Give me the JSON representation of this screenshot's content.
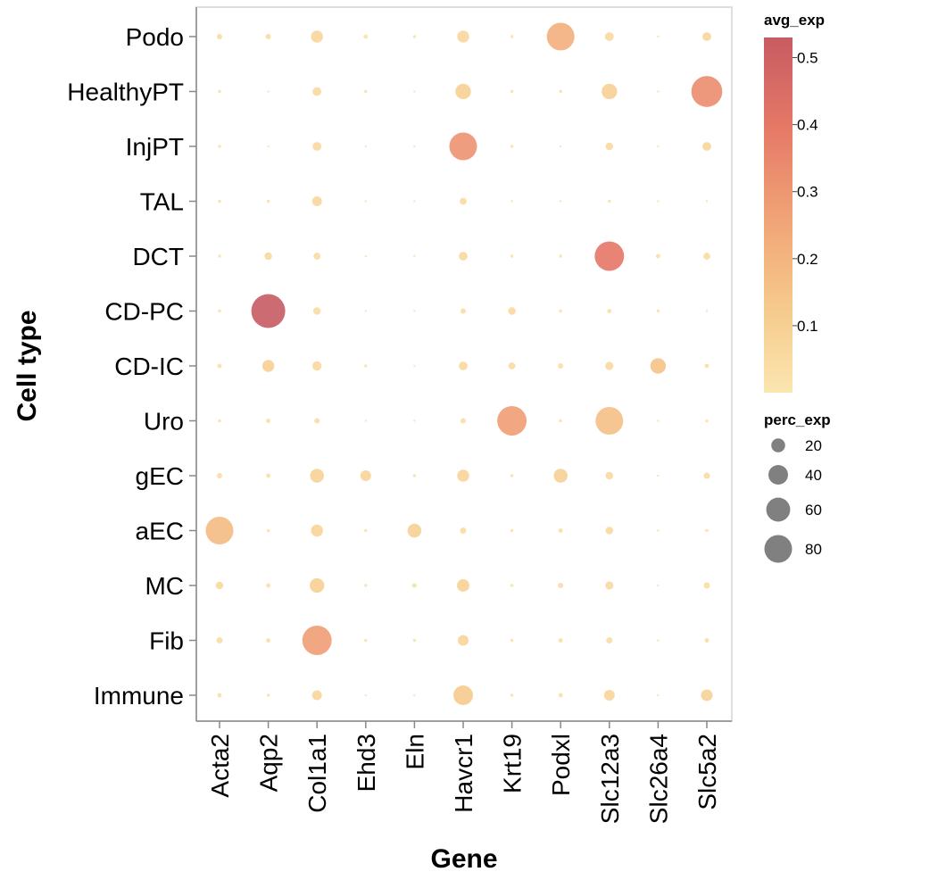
{
  "chart_data": {
    "type": "dotplot",
    "xlabel": "Gene",
    "ylabel": "Cell type",
    "genes": [
      "Acta2",
      "Aqp2",
      "Col1a1",
      "Ehd3",
      "Eln",
      "Havcr1",
      "Krt19",
      "Podxl",
      "Slc12a3",
      "Slc26a4",
      "Slc5a2"
    ],
    "cell_types": [
      "Podo",
      "HealthyPT",
      "InjPT",
      "TAL",
      "DCT",
      "CD-PC",
      "CD-IC",
      "Uro",
      "gEC",
      "aEC",
      "MC",
      "Fib",
      "Immune"
    ],
    "perc_exp": [
      [
        3,
        3,
        15,
        2,
        1,
        15,
        1,
        80,
        8,
        0.5,
        8
      ],
      [
        1,
        0.5,
        8,
        1,
        0.5,
        25,
        1,
        1,
        25,
        0.5,
        100
      ],
      [
        1,
        0.5,
        8,
        0.5,
        0.5,
        80,
        1,
        0.5,
        6,
        0.5,
        8
      ],
      [
        1,
        1,
        10,
        0.5,
        0.5,
        5,
        0.5,
        0.5,
        1,
        0.5,
        0.5
      ],
      [
        1,
        6,
        5,
        0.5,
        0.5,
        8,
        1,
        1,
        90,
        2,
        5
      ],
      [
        1,
        120,
        6,
        0.5,
        0.5,
        3,
        6,
        1,
        2,
        1,
        0.5
      ],
      [
        2,
        15,
        9,
        1,
        0.5,
        8,
        5,
        3,
        7,
        25,
        2
      ],
      [
        1,
        2,
        3,
        0.5,
        0.5,
        3,
        90,
        1,
        80,
        0.5,
        1
      ],
      [
        3,
        2,
        20,
        12,
        1,
        15,
        1,
        20,
        6,
        0.5,
        4
      ],
      [
        80,
        1,
        15,
        1,
        20,
        4,
        1,
        2,
        6,
        0.5,
        1
      ],
      [
        6,
        2,
        22,
        1,
        2,
        16,
        1,
        3,
        7,
        0.5,
        4
      ],
      [
        4,
        2,
        90,
        1,
        1,
        12,
        1,
        2,
        4,
        0.5,
        2
      ],
      [
        2,
        1,
        10,
        0.5,
        0.5,
        40,
        1,
        2,
        12,
        0.5,
        14
      ]
    ],
    "avg_exp": [
      [
        0.05,
        0.05,
        0.07,
        0.02,
        0.02,
        0.07,
        0.02,
        0.22,
        0.06,
        0.01,
        0.07
      ],
      [
        0.02,
        0.01,
        0.06,
        0.02,
        0.01,
        0.1,
        0.02,
        0.02,
        0.1,
        0.01,
        0.33
      ],
      [
        0.02,
        0.01,
        0.06,
        0.01,
        0.01,
        0.31,
        0.02,
        0.01,
        0.06,
        0.01,
        0.07
      ],
      [
        0.02,
        0.02,
        0.07,
        0.01,
        0.01,
        0.05,
        0.01,
        0.01,
        0.02,
        0.01,
        0.01
      ],
      [
        0.02,
        0.06,
        0.05,
        0.01,
        0.01,
        0.06,
        0.02,
        0.02,
        0.4,
        0.03,
        0.05
      ],
      [
        0.02,
        0.53,
        0.05,
        0.01,
        0.01,
        0.04,
        0.06,
        0.02,
        0.03,
        0.02,
        0.01
      ],
      [
        0.03,
        0.1,
        0.06,
        0.02,
        0.01,
        0.06,
        0.05,
        0.04,
        0.06,
        0.15,
        0.03
      ],
      [
        0.02,
        0.03,
        0.04,
        0.01,
        0.01,
        0.04,
        0.28,
        0.02,
        0.16,
        0.01,
        0.02
      ],
      [
        0.04,
        0.03,
        0.09,
        0.08,
        0.02,
        0.08,
        0.02,
        0.1,
        0.06,
        0.01,
        0.05
      ],
      [
        0.18,
        0.02,
        0.08,
        0.02,
        0.1,
        0.05,
        0.02,
        0.03,
        0.06,
        0.01,
        0.02
      ],
      [
        0.06,
        0.03,
        0.1,
        0.02,
        0.03,
        0.09,
        0.02,
        0.04,
        0.06,
        0.01,
        0.05
      ],
      [
        0.05,
        0.03,
        0.28,
        0.02,
        0.02,
        0.08,
        0.02,
        0.03,
        0.05,
        0.01,
        0.03
      ],
      [
        0.03,
        0.02,
        0.07,
        0.01,
        0.01,
        0.12,
        0.02,
        0.03,
        0.08,
        0.01,
        0.09
      ]
    ],
    "color_legend": {
      "title": "avg_exp",
      "ticks": [
        0.5,
        0.4,
        0.3,
        0.2,
        0.1
      ],
      "range": [
        0.0,
        0.53
      ],
      "colors": [
        "#fbe6b0",
        "#f6c88a",
        "#f0a276",
        "#e57866",
        "#c75b62"
      ]
    },
    "size_legend": {
      "title": "perc_exp",
      "values": [
        20,
        40,
        60,
        80
      ],
      "range": [
        0,
        120
      ]
    }
  }
}
